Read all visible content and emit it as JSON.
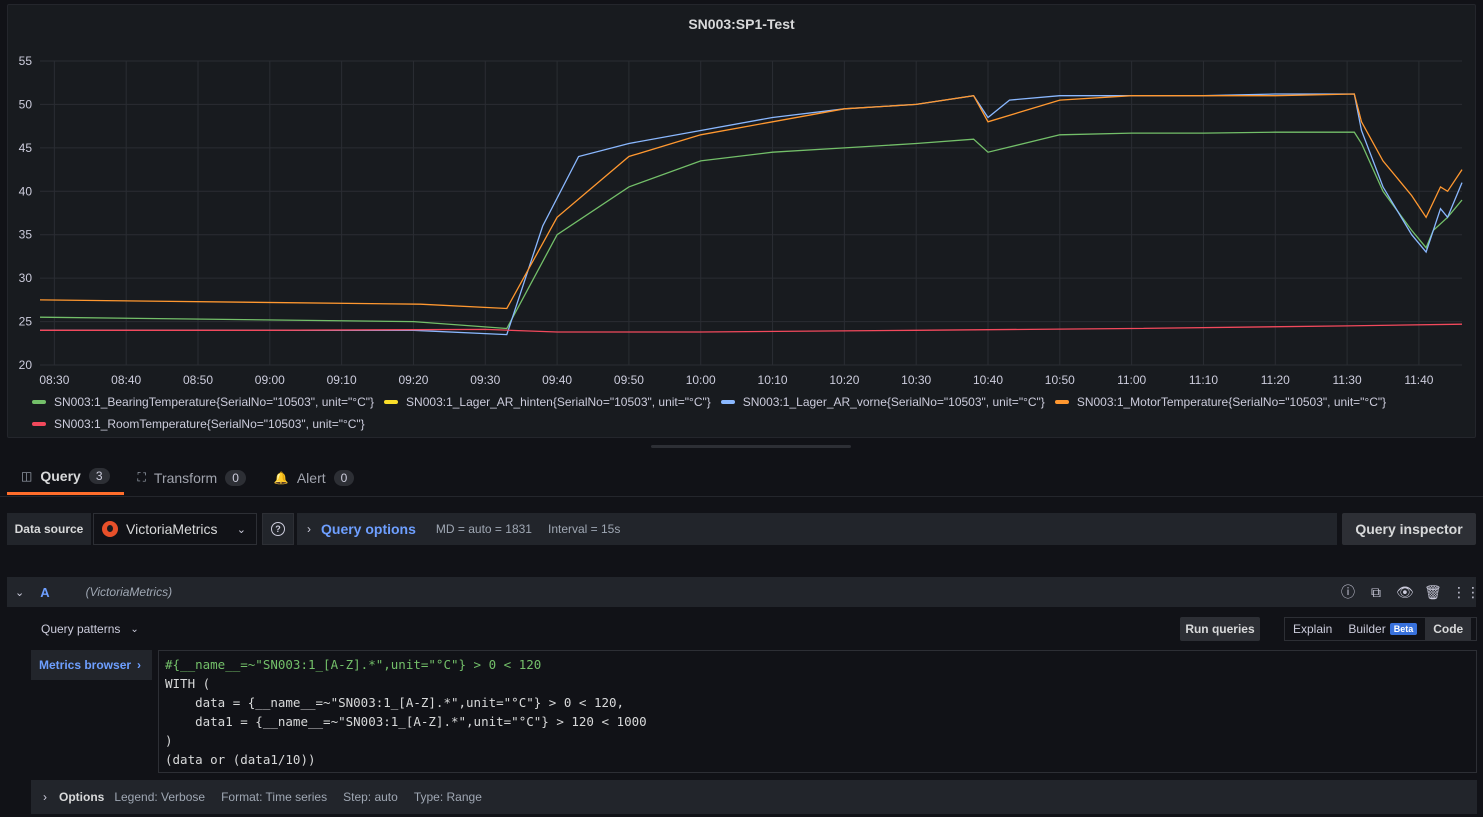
{
  "panel": {
    "title": "SN003:SP1-Test"
  },
  "chart_data": {
    "type": "line",
    "ylim": [
      20,
      55
    ],
    "yticks": [
      20,
      25,
      30,
      35,
      40,
      45,
      50,
      55
    ],
    "xticks": [
      "08:30",
      "08:40",
      "08:50",
      "09:00",
      "09:10",
      "09:20",
      "09:30",
      "09:40",
      "09:50",
      "10:00",
      "10:10",
      "10:20",
      "10:30",
      "10:40",
      "10:50",
      "11:00",
      "11:10",
      "11:20",
      "11:30",
      "11:40"
    ],
    "x_start": "08:28",
    "x_end": "11:46",
    "grid": true,
    "legend_placement": "bottom",
    "series": [
      {
        "name": "SN003:1_BearingTemperature{SerialNo=\"10503\", unit=\"°C\"}",
        "color": "#73bf69",
        "x": [
          "08:28",
          "09:20",
          "09:33",
          "09:40",
          "09:50",
          "10:00",
          "10:10",
          "10:20",
          "10:30",
          "10:38",
          "10:40",
          "10:50",
          "11:00",
          "11:10",
          "11:20",
          "11:31",
          "11:32",
          "11:35",
          "11:39",
          "11:41",
          "11:42",
          "11:44",
          "11:46"
        ],
        "values": [
          25.5,
          25.0,
          24.2,
          35.0,
          40.5,
          43.5,
          44.5,
          45.0,
          45.5,
          46.0,
          44.5,
          46.5,
          46.7,
          46.7,
          46.8,
          46.8,
          45.5,
          40.0,
          35.5,
          33.5,
          35.5,
          37.0,
          39.0
        ]
      },
      {
        "name": "SN003:1_Lager_AR_hinten{SerialNo=\"10503\", unit=\"°C\"}",
        "color": "#fade2a",
        "x": [],
        "values": []
      },
      {
        "name": "SN003:1_Lager_AR_vorne{SerialNo=\"10503\", unit=\"°C\"}",
        "color": "#8ab8ff",
        "x": [
          "08:28",
          "09:20",
          "09:33",
          "09:38",
          "09:43",
          "09:50",
          "10:00",
          "10:10",
          "10:20",
          "10:30",
          "10:38",
          "10:40",
          "10:43",
          "10:50",
          "11:00",
          "11:10",
          "11:20",
          "11:31",
          "11:32",
          "11:35",
          "11:39",
          "11:41",
          "11:43",
          "11:44",
          "11:46"
        ],
        "values": [
          24.0,
          24.0,
          23.5,
          36.0,
          44.0,
          45.5,
          47.0,
          48.5,
          49.5,
          50.0,
          51.0,
          48.5,
          50.5,
          51.0,
          51.0,
          51.0,
          51.2,
          51.2,
          47.0,
          40.5,
          35.0,
          33.0,
          38.0,
          37.0,
          41.0
        ]
      },
      {
        "name": "SN003:1_MotorTemperature{SerialNo=\"10503\", unit=\"°C\"}",
        "color": "#ff9830",
        "x": [
          "08:28",
          "09:21",
          "09:33",
          "09:40",
          "09:50",
          "10:00",
          "10:10",
          "10:20",
          "10:30",
          "10:38",
          "10:40",
          "10:50",
          "11:00",
          "11:10",
          "11:20",
          "11:31",
          "11:32",
          "11:35",
          "11:39",
          "11:41",
          "11:43",
          "11:44",
          "11:46"
        ],
        "values": [
          27.5,
          27.0,
          26.5,
          37.0,
          44.0,
          46.5,
          48.0,
          49.5,
          50.0,
          51.0,
          48.0,
          50.5,
          51.0,
          51.0,
          51.0,
          51.2,
          48.0,
          43.5,
          39.5,
          37.0,
          40.5,
          40.0,
          42.5
        ]
      },
      {
        "name": "SN003:1_RoomTemperature{SerialNo=\"10503\", unit=\"°C\"}",
        "color": "#f2495c",
        "x": [
          "08:28",
          "09:00",
          "09:30",
          "09:40",
          "10:00",
          "10:30",
          "11:00",
          "11:30",
          "11:46"
        ],
        "values": [
          24.0,
          24.0,
          24.1,
          23.8,
          23.8,
          24.0,
          24.2,
          24.5,
          24.7
        ]
      }
    ]
  },
  "tabs": [
    {
      "label": "Query",
      "count": "3"
    },
    {
      "label": "Transform",
      "count": "0"
    },
    {
      "label": "Alert",
      "count": "0"
    }
  ],
  "datasource": {
    "label": "Data source",
    "name": "VictoriaMetrics",
    "query_options_label": "Query options",
    "md": "MD = auto = 1831",
    "interval": "Interval = 15s",
    "inspector_label": "Query inspector"
  },
  "query": {
    "ref": "A",
    "datasource": "(VictoriaMetrics)",
    "patterns_label": "Query patterns",
    "run_label": "Run queries",
    "modes": {
      "explain": "Explain",
      "builder": "Builder",
      "beta": "Beta",
      "code": "Code"
    },
    "metrics_browser": "Metrics browser",
    "code_lines": [
      "#{__name__=~\"SN003:1_[A-Z].*\",unit=\"°C\"} > 0 < 120",
      "WITH (",
      "    data = {__name__=~\"SN003:1_[A-Z].*\",unit=\"°C\"} > 0 < 120,",
      "    data1 = {__name__=~\"SN003:1_[A-Z].*\",unit=\"°C\"} > 120 < 1000",
      ")",
      "(data or (data1/10))"
    ]
  },
  "options": {
    "title": "Options",
    "legend": "Legend: Verbose",
    "format": "Format: Time series",
    "step": "Step: auto",
    "type": "Type: Range"
  }
}
